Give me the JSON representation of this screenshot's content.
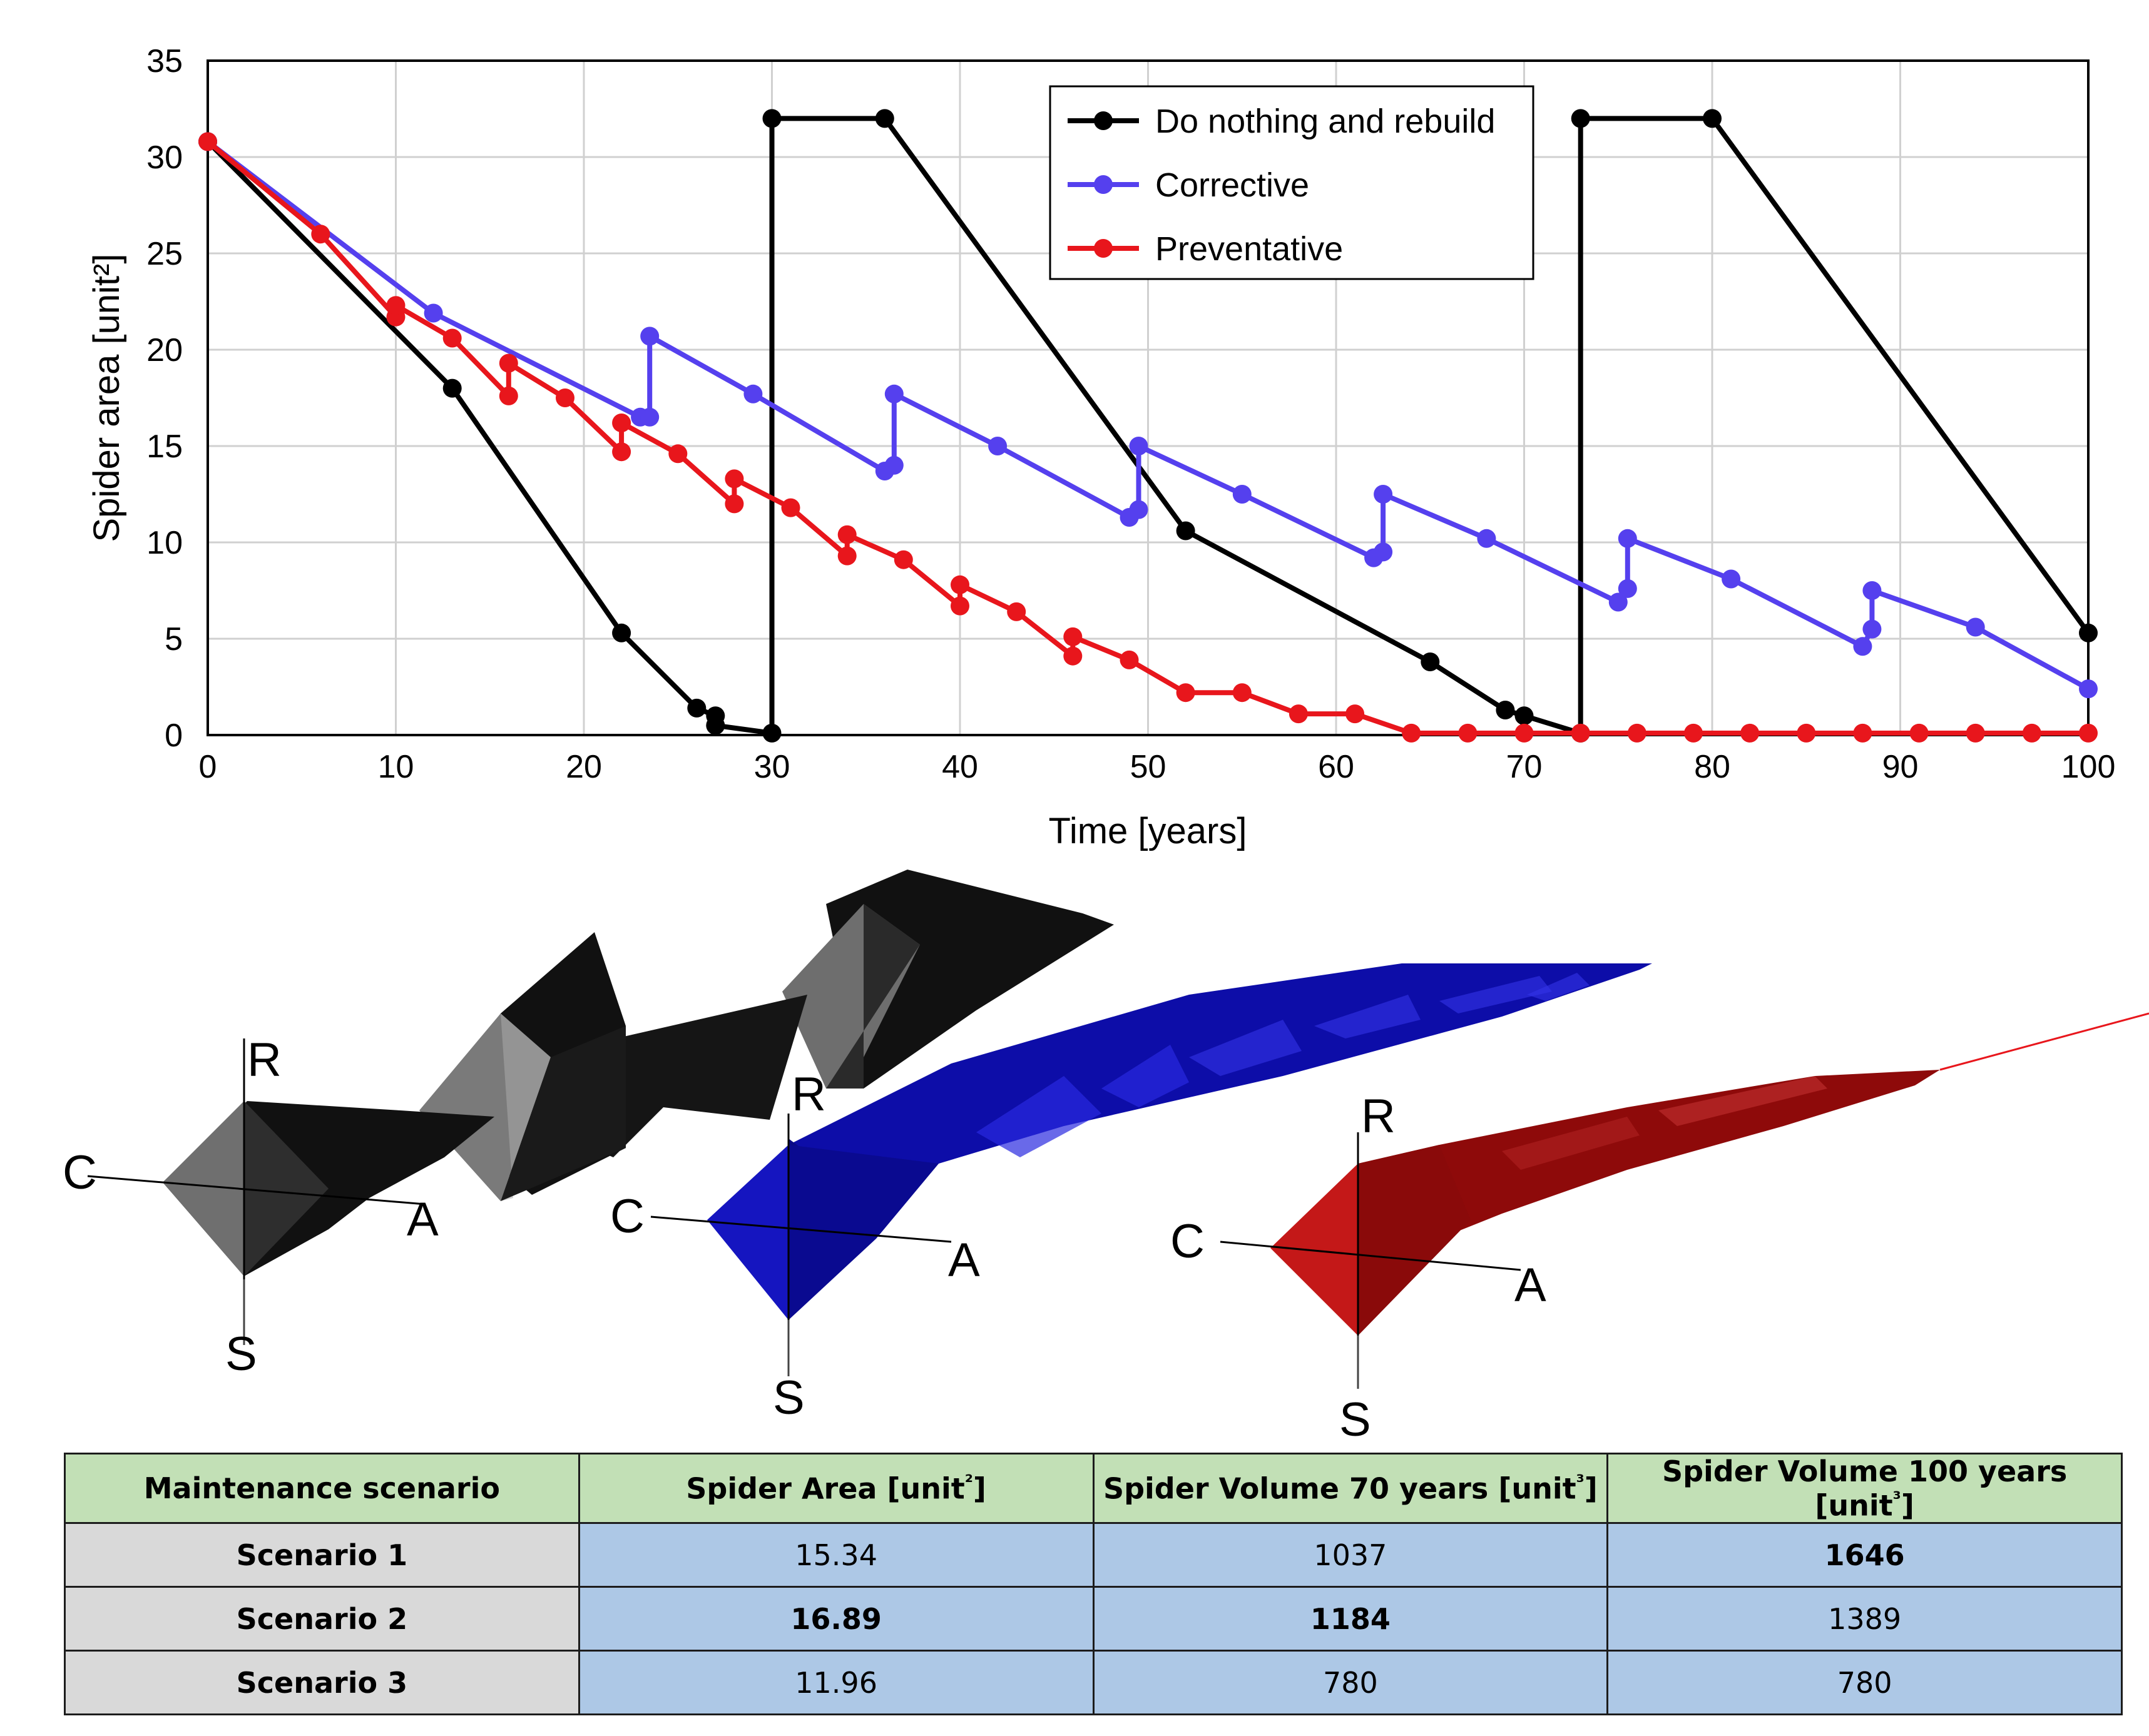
{
  "chart_data": {
    "type": "line",
    "xlabel": "Time [years]",
    "ylabel": "Spider area [unit²]",
    "xlim": [
      0,
      100
    ],
    "ylim": [
      0,
      35
    ],
    "xticks": [
      "0",
      "10",
      "20",
      "30",
      "40",
      "50",
      "60",
      "70",
      "80",
      "90",
      "100"
    ],
    "yticks": [
      "0",
      "5",
      "10",
      "15",
      "20",
      "25",
      "30",
      "35"
    ],
    "grid": true,
    "legend_position": "top-center",
    "series": [
      {
        "name": "Do nothing and rebuild",
        "color": "#000000",
        "points": [
          [
            0,
            30.8
          ],
          [
            13,
            18
          ],
          [
            22,
            5.3
          ],
          [
            26,
            1.4
          ],
          [
            27,
            1.0
          ],
          [
            27,
            0.5
          ],
          [
            30,
            0.1
          ],
          [
            30,
            32
          ],
          [
            36,
            32
          ],
          [
            52,
            10.6
          ],
          [
            65,
            3.8
          ],
          [
            69,
            1.3
          ],
          [
            70,
            1.0
          ],
          [
            73,
            0.1
          ],
          [
            73,
            32
          ],
          [
            80,
            32
          ],
          [
            100,
            5.3
          ]
        ]
      },
      {
        "name": "Corrective",
        "color": "#5540ee",
        "points": [
          [
            0,
            30.8
          ],
          [
            12,
            21.9
          ],
          [
            23,
            16.5
          ],
          [
            23.5,
            16.5
          ],
          [
            23.5,
            20.7
          ],
          [
            29,
            17.7
          ],
          [
            36,
            13.7
          ],
          [
            36.5,
            14
          ],
          [
            36.5,
            17.7
          ],
          [
            42,
            15
          ],
          [
            49,
            11.3
          ],
          [
            49.5,
            11.7
          ],
          [
            49.5,
            15
          ],
          [
            55,
            12.5
          ],
          [
            62,
            9.2
          ],
          [
            62.5,
            9.5
          ],
          [
            62.5,
            12.5
          ],
          [
            68,
            10.2
          ],
          [
            75,
            6.9
          ],
          [
            75.5,
            7.6
          ],
          [
            75.5,
            10.2
          ],
          [
            81,
            8.1
          ],
          [
            88,
            4.6
          ],
          [
            88.5,
            5.5
          ],
          [
            88.5,
            7.5
          ],
          [
            94,
            5.6
          ],
          [
            100,
            2.4
          ]
        ]
      },
      {
        "name": "Preventative",
        "color": "#e8161c",
        "points": [
          [
            0,
            30.8
          ],
          [
            6,
            26
          ],
          [
            10,
            21.7
          ],
          [
            10,
            22.3
          ],
          [
            13,
            20.6
          ],
          [
            16,
            17.6
          ],
          [
            16,
            19.3
          ],
          [
            19,
            17.5
          ],
          [
            22,
            14.7
          ],
          [
            22,
            16.2
          ],
          [
            25,
            14.6
          ],
          [
            28,
            12
          ],
          [
            28,
            13.3
          ],
          [
            31,
            11.8
          ],
          [
            34,
            9.3
          ],
          [
            34,
            10.4
          ],
          [
            37,
            9.1
          ],
          [
            40,
            6.7
          ],
          [
            40,
            7.8
          ],
          [
            43,
            6.4
          ],
          [
            46,
            4.1
          ],
          [
            46,
            5.1
          ],
          [
            49,
            3.9
          ],
          [
            52,
            2.2
          ],
          [
            55,
            2.2
          ],
          [
            58,
            1.1
          ],
          [
            61,
            1.1
          ],
          [
            64,
            0.1
          ],
          [
            67,
            0.1
          ],
          [
            70,
            0.1
          ],
          [
            73,
            0.1
          ],
          [
            76,
            0.1
          ],
          [
            79,
            0.1
          ],
          [
            82,
            0.1
          ],
          [
            85,
            0.1
          ],
          [
            88,
            0.1
          ],
          [
            91,
            0.1
          ],
          [
            94,
            0.1
          ],
          [
            97,
            0.1
          ],
          [
            100,
            0.1
          ]
        ]
      }
    ]
  },
  "spider_diagrams": {
    "axis_labels": [
      "R",
      "C",
      "A",
      "S"
    ]
  },
  "table": {
    "headers": [
      "Maintenance scenario",
      "Spider Area [unit²]",
      "Spider Volume 70 years [unit³]",
      "Spider Volume 100 years [unit³]"
    ],
    "rows": [
      {
        "scenario": "Scenario 1",
        "area": "15.34",
        "vol70": "1037",
        "vol100": "1646"
      },
      {
        "scenario": "Scenario 2",
        "area": "16.89",
        "vol70": "1184",
        "vol100": "1389"
      },
      {
        "scenario": "Scenario 3",
        "area": "11.96",
        "vol70": "780",
        "vol100": "780"
      }
    ]
  }
}
